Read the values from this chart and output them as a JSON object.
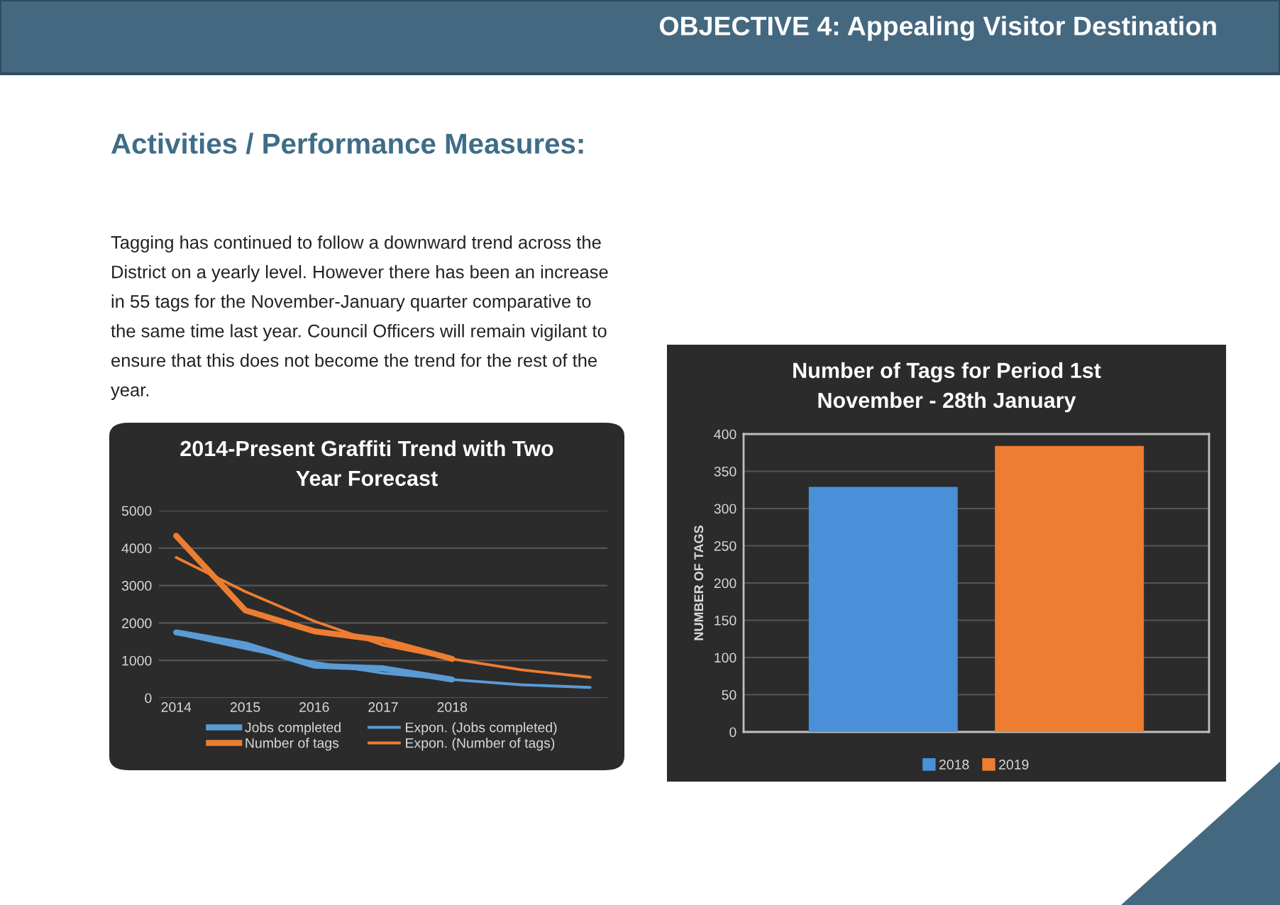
{
  "chart_data": [
    {
      "type": "line",
      "title": "2014-Present Graffiti Trend with Two Year Forecast",
      "annotations": [
        "OBJECTIVE 4: Appealing Visitor Destination",
        "Activities / Performance Measures:",
        "Tagging has continued to follow a downward trend across the District on a yearly level. However there has been an increase in 55 tags for the November-January quarter comparative to the same time last year. Council Officers will remain vigilant to ensure that this does not become the trend for the rest of the year."
      ],
      "categories": [
        "2014",
        "2015",
        "2016",
        "2017",
        "2018",
        null,
        null
      ],
      "series": [
        {
          "name": "Jobs completed",
          "color": "#5b9bd5",
          "values": [
            1750,
            1430,
            860,
            790,
            490,
            null,
            null
          ]
        },
        {
          "name": "Number of tags",
          "color": "#ed7d31",
          "values": [
            4330,
            2340,
            1780,
            1540,
            1040,
            null,
            null
          ]
        },
        {
          "name": "Expon. (Jobs completed)",
          "color": "#5b9bd5",
          "values": [
            1720,
            1320,
            950,
            660,
            490,
            350,
            280
          ]
        },
        {
          "name": "Expon. (Number of tags)",
          "color": "#ed7d31",
          "values": [
            3750,
            2840,
            2050,
            1410,
            1040,
            750,
            550
          ]
        }
      ],
      "ylim": [
        0,
        5000
      ],
      "yticks": [
        0,
        1000,
        2000,
        3000,
        4000,
        5000
      ],
      "grid": "y",
      "legend": "bottom"
    },
    {
      "type": "bar",
      "title": "Number of Tags for Period 1st November - 28th January",
      "ylabel": "NUMBER OF TAGS",
      "categories": [
        null
      ],
      "series": [
        {
          "name": "2018",
          "color": "#4a90d9",
          "values": [
            329
          ]
        },
        {
          "name": "2019",
          "color": "#ed7d31",
          "values": [
            384
          ]
        }
      ],
      "ylim": [
        0,
        400
      ],
      "yticks": [
        0,
        50,
        100,
        150,
        200,
        250,
        300,
        350,
        400
      ],
      "grid": "y",
      "legend": "bottom"
    }
  ]
}
